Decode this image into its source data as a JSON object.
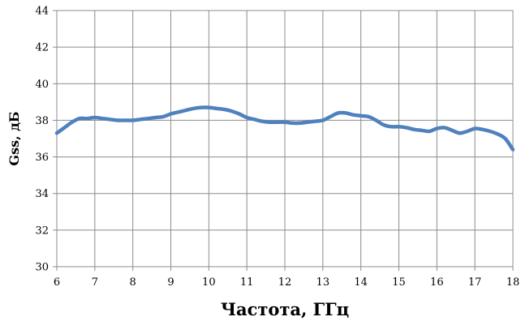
{
  "chart_data": {
    "type": "line",
    "title": "",
    "xlabel": "Частота, ГГц",
    "ylabel": "Gss, дБ",
    "xlim": [
      6,
      18
    ],
    "ylim": [
      30,
      44
    ],
    "xticks": [
      "6",
      "7",
      "8",
      "9",
      "10",
      "11",
      "12",
      "13",
      "14",
      "15",
      "16",
      "17",
      "18"
    ],
    "yticks": [
      "30",
      "32",
      "34",
      "36",
      "38",
      "40",
      "42",
      "44"
    ],
    "grid": true,
    "legend": "none",
    "series": [
      {
        "color": "#4f81bd",
        "x": [
          6.0,
          6.2,
          6.4,
          6.6,
          6.8,
          7.0,
          7.2,
          7.4,
          7.6,
          7.8,
          8.0,
          8.2,
          8.4,
          8.6,
          8.8,
          9.0,
          9.2,
          9.4,
          9.6,
          9.8,
          10.0,
          10.2,
          10.4,
          10.6,
          10.8,
          11.0,
          11.2,
          11.4,
          11.6,
          11.8,
          12.0,
          12.2,
          12.4,
          12.6,
          12.8,
          13.0,
          13.2,
          13.4,
          13.6,
          13.8,
          14.0,
          14.2,
          14.4,
          14.6,
          14.8,
          15.0,
          15.2,
          15.4,
          15.6,
          15.8,
          16.0,
          16.2,
          16.4,
          16.6,
          16.8,
          17.0,
          17.2,
          17.4,
          17.6,
          17.8,
          18.0
        ],
        "y": [
          37.3,
          37.6,
          37.9,
          38.1,
          38.1,
          38.15,
          38.1,
          38.05,
          38.0,
          38.0,
          38.0,
          38.05,
          38.1,
          38.15,
          38.2,
          38.35,
          38.45,
          38.55,
          38.65,
          38.7,
          38.7,
          38.65,
          38.6,
          38.5,
          38.35,
          38.15,
          38.05,
          37.95,
          37.9,
          37.9,
          37.9,
          37.85,
          37.85,
          37.9,
          37.95,
          38.0,
          38.2,
          38.4,
          38.4,
          38.3,
          38.25,
          38.2,
          38.0,
          37.75,
          37.65,
          37.65,
          37.6,
          37.5,
          37.45,
          37.4,
          37.55,
          37.6,
          37.45,
          37.3,
          37.4,
          37.55,
          37.5,
          37.4,
          37.25,
          37.0,
          36.4
        ]
      }
    ]
  }
}
